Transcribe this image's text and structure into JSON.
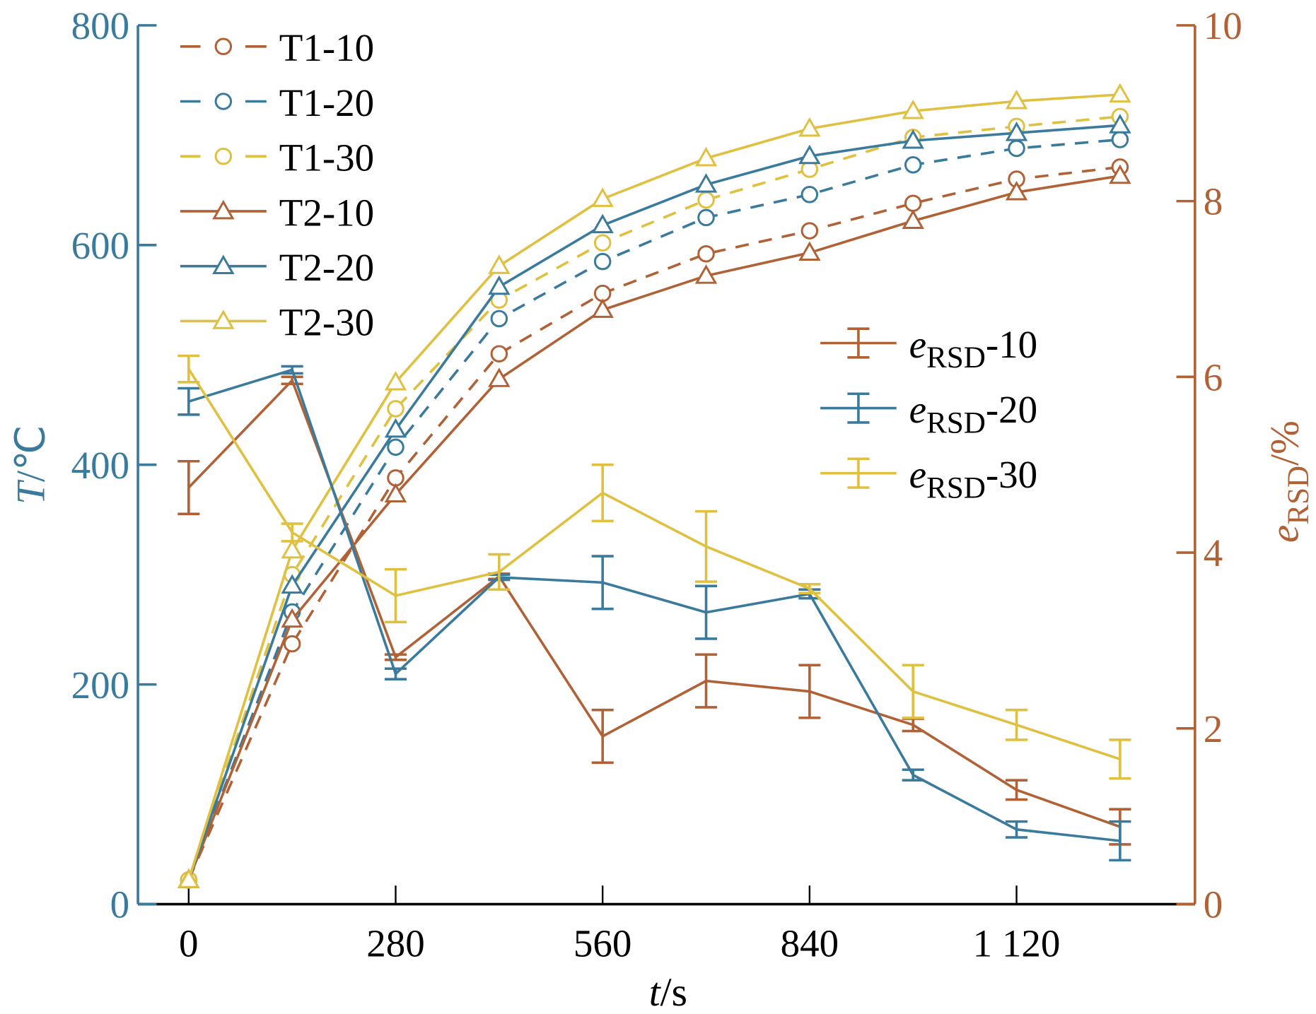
{
  "chart_data": {
    "type": "line",
    "title": "",
    "xlabel": {
      "var": "t",
      "unit": "s"
    },
    "ylabel_left": {
      "var": "T",
      "unit": "℃"
    },
    "ylabel_right": {
      "var": "e",
      "sub": "RSD",
      "unit": "%"
    },
    "x": [
      0,
      140,
      280,
      420,
      560,
      700,
      840,
      980,
      1120,
      1260
    ],
    "xlim": [
      -70,
      1330
    ],
    "ylim_left": [
      0,
      800
    ],
    "ylim_right": [
      0,
      10
    ],
    "x_ticks": [
      0,
      280,
      560,
      840,
      1120
    ],
    "x_tick_labels": [
      "0",
      "280",
      "560",
      "840",
      "1 120"
    ],
    "y_left_ticks": [
      0,
      200,
      400,
      600,
      800
    ],
    "y_left_tick_labels": [
      "0",
      "200",
      "400",
      "600",
      "800"
    ],
    "y_right_ticks": [
      0,
      2,
      4,
      6,
      8,
      10
    ],
    "y_right_tick_labels": [
      "0",
      "2",
      "4",
      "6",
      "8",
      "10"
    ],
    "grid": false,
    "colors": {
      "c10": "#B06236",
      "c20": "#3A7A9C",
      "c30": "#E0C040"
    },
    "series": [
      {
        "name": "T1-10",
        "axis": "left",
        "color": "#B06236",
        "style": "dashed",
        "marker": "circle",
        "values": [
          22,
          237,
          388,
          501,
          556,
          592,
          613,
          638,
          660,
          671
        ]
      },
      {
        "name": "T1-20",
        "axis": "left",
        "color": "#3A7A9C",
        "style": "dashed",
        "marker": "circle",
        "values": [
          22,
          266,
          416,
          533,
          585,
          625,
          646,
          673,
          688,
          696
        ]
      },
      {
        "name": "T1-30",
        "axis": "left",
        "color": "#E0C040",
        "style": "dashed",
        "marker": "circle",
        "values": [
          22,
          300,
          451,
          550,
          602,
          641,
          669,
          698,
          708,
          717
        ]
      },
      {
        "name": "T2-10",
        "axis": "left",
        "color": "#B06236",
        "style": "solid",
        "marker": "triangle",
        "values": [
          22,
          259,
          373,
          478,
          541,
          572,
          593,
          622,
          648,
          663
        ]
      },
      {
        "name": "T2-20",
        "axis": "left",
        "color": "#3A7A9C",
        "style": "solid",
        "marker": "triangle",
        "values": [
          22,
          290,
          432,
          562,
          618,
          655,
          681,
          695,
          702,
          709
        ]
      },
      {
        "name": "T2-30",
        "axis": "left",
        "color": "#E0C040",
        "style": "solid",
        "marker": "triangle",
        "values": [
          22,
          322,
          475,
          581,
          642,
          679,
          706,
          722,
          731,
          737
        ]
      },
      {
        "name": "eRSD-10",
        "label_main": "e",
        "label_sub": "RSD",
        "label_suffix": "-10",
        "axis": "right",
        "color": "#B06236",
        "style": "solid",
        "marker": "errorbar",
        "values": [
          4.74,
          5.96,
          2.81,
          3.73,
          1.91,
          2.54,
          2.42,
          2.04,
          1.3,
          0.88
        ],
        "errors": [
          0.3,
          0.04,
          0.03,
          0.03,
          0.3,
          0.3,
          0.3,
          0.07,
          0.11,
          0.2
        ]
      },
      {
        "name": "eRSD-20",
        "label_main": "e",
        "label_sub": "RSD",
        "label_suffix": "-20",
        "axis": "right",
        "color": "#3A7A9C",
        "style": "solid",
        "marker": "errorbar",
        "values": [
          5.72,
          6.08,
          2.62,
          3.72,
          3.66,
          3.32,
          3.53,
          1.47,
          0.85,
          0.72
        ],
        "errors": [
          0.15,
          0.04,
          0.06,
          0.03,
          0.3,
          0.3,
          0.05,
          0.06,
          0.09,
          0.22
        ]
      },
      {
        "name": "eRSD-30",
        "label_main": "e",
        "label_sub": "RSD",
        "label_suffix": "-30",
        "axis": "right",
        "color": "#E0C040",
        "style": "solid",
        "marker": "errorbar",
        "values": [
          6.09,
          4.23,
          3.51,
          3.78,
          4.68,
          4.07,
          3.59,
          2.42,
          2.04,
          1.65
        ],
        "errors": [
          0.15,
          0.1,
          0.3,
          0.2,
          0.32,
          0.4,
          0.05,
          0.3,
          0.17,
          0.22
        ]
      }
    ],
    "legends": [
      {
        "placement": "top-left",
        "entries": [
          "T1-10",
          "T1-20",
          "T1-30",
          "T2-10",
          "T2-20",
          "T2-30"
        ]
      },
      {
        "placement": "center-right",
        "entries": [
          "eRSD-10",
          "eRSD-20",
          "eRSD-30"
        ]
      }
    ]
  }
}
